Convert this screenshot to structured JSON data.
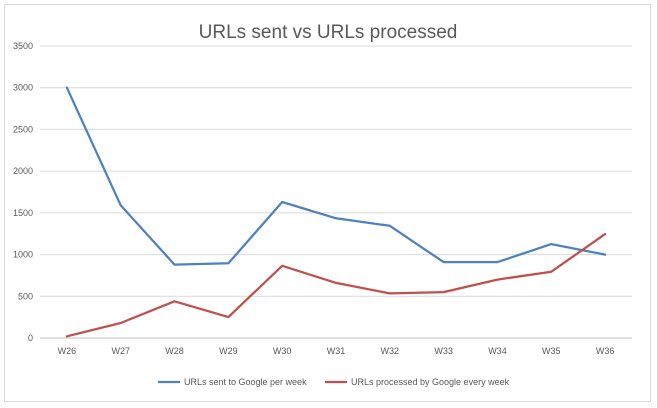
{
  "chart_data": {
    "type": "line",
    "title": "URLs sent vs URLs processed",
    "xlabel": "",
    "ylabel": "",
    "categories": [
      "W26",
      "W27",
      "W28",
      "W29",
      "W30",
      "W31",
      "W32",
      "W33",
      "W34",
      "W35",
      "W36"
    ],
    "ylim": [
      0,
      3500
    ],
    "yticks": [
      "0",
      "500",
      "1000",
      "1500",
      "2000",
      "2500",
      "3000",
      "3500"
    ],
    "grid": true,
    "legend_position": "bottom",
    "series": [
      {
        "name": "URLs sent to Google per week",
        "color": "#4f81bd",
        "values": [
          3000,
          1590,
          880,
          895,
          1630,
          1435,
          1345,
          910,
          910,
          1125,
          1000
        ]
      },
      {
        "name": "URLs processed by Google every week",
        "color": "#c0504d",
        "values": [
          20,
          180,
          440,
          250,
          865,
          660,
          535,
          550,
          700,
          795,
          1245
        ]
      }
    ]
  }
}
